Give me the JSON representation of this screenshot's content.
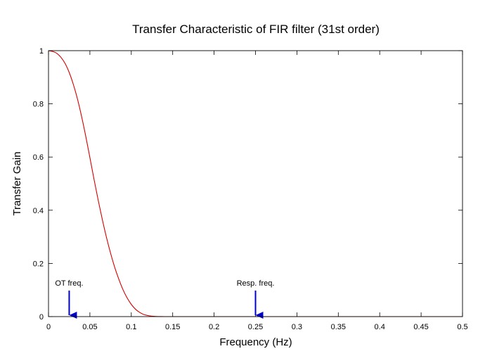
{
  "chart_data": {
    "type": "line",
    "title": "Transfer Characteristic of FIR filter (31st order)",
    "xlabel": "Frequency (Hz)",
    "ylabel": "Transfer Gain",
    "xlim": [
      0,
      0.5
    ],
    "ylim": [
      0,
      1
    ],
    "x_ticks": [
      0,
      0.05,
      0.1,
      0.15,
      0.2,
      0.25,
      0.3,
      0.35,
      0.4,
      0.45,
      0.5
    ],
    "x_tick_labels": [
      "0",
      "0.05",
      "0.1",
      "0.15",
      "0.2",
      "0.25",
      "0.3",
      "0.35",
      "0.4",
      "0.45",
      "0.5"
    ],
    "y_ticks": [
      0,
      0.2,
      0.4,
      0.6,
      0.8,
      1
    ],
    "y_tick_labels": [
      "0",
      "0.2",
      "0.4",
      "0.6",
      "0.8",
      "1"
    ],
    "grid": false,
    "legend": "none",
    "series": [
      {
        "color": "#d40000",
        "x": [
          0,
          0.005,
          0.01,
          0.015,
          0.02,
          0.025,
          0.03,
          0.035,
          0.04,
          0.045,
          0.05,
          0.055,
          0.06,
          0.065,
          0.07,
          0.075,
          0.08,
          0.085,
          0.09,
          0.095,
          0.1,
          0.105,
          0.11,
          0.115,
          0.12,
          0.125,
          0.13,
          0.135,
          0.14,
          0.15,
          0.2,
          0.25,
          0.3,
          0.35,
          0.4,
          0.45,
          0.5
        ],
        "y": [
          1,
          0.997,
          0.99,
          0.975,
          0.952,
          0.918,
          0.873,
          0.818,
          0.752,
          0.678,
          0.598,
          0.516,
          0.438,
          0.365,
          0.298,
          0.238,
          0.185,
          0.14,
          0.101,
          0.07,
          0.046,
          0.028,
          0.016,
          0.008,
          0.004,
          0.0015,
          0.0005,
          0.0001,
          0,
          0,
          0,
          0,
          0,
          0,
          0,
          0,
          0
        ]
      }
    ],
    "annotations": [
      {
        "text": "OT freq.",
        "x": 0.025,
        "color": "#0000cc"
      },
      {
        "text": "Resp. freq.",
        "x": 0.25,
        "color": "#0000cc"
      }
    ]
  }
}
